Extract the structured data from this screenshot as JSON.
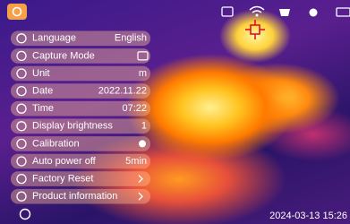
{
  "menu": {
    "items": [
      {
        "label": "Language",
        "value": "English"
      },
      {
        "label": "Capture Mode"
      },
      {
        "label": "Unit",
        "value": "m"
      },
      {
        "label": "Date",
        "value": "2022.11.22"
      },
      {
        "label": "Time",
        "value": "07:22"
      },
      {
        "label": "Display brightness",
        "value": "1"
      },
      {
        "label": "Calibration"
      },
      {
        "label": "Auto power off",
        "value": "5min"
      },
      {
        "label": "Factory Reset"
      },
      {
        "label": "Product information"
      }
    ]
  },
  "status": {
    "timestamp": "2024-03-13 15:26"
  }
}
